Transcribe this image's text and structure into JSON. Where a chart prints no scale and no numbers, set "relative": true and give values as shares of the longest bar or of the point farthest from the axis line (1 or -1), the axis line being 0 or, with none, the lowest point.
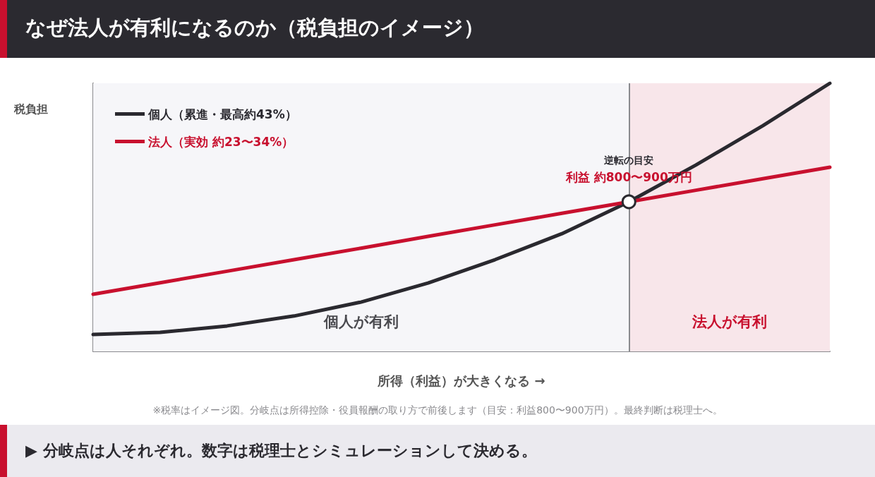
{
  "chart_data": {
    "type": "line",
    "title": "なぜ法人が有利になるのか（税負担のイメージ）",
    "xlabel": "所得（利益）が大きくなる →",
    "ylabel": "税負担",
    "relative": true,
    "categories": [
      null,
      null,
      null,
      null,
      null,
      null,
      null,
      null,
      null,
      null,
      null,
      null
    ],
    "series": [
      {
        "name": "個人（累進・最高約43%）",
        "color": "#2a292f",
        "values": [
          0.063,
          0.071,
          0.095,
          0.132,
          0.184,
          0.255,
          0.342,
          0.439,
          0.558,
          0.695,
          0.842,
          1.0
        ]
      },
      {
        "name": "法人（実効 約23〜34%）",
        "color": "#c8102e",
        "values": [
          0.213,
          0.256,
          0.299,
          0.342,
          0.385,
          0.429,
          0.472,
          0.515,
          0.558,
          0.601,
          0.644,
          0.687
        ]
      }
    ],
    "annotations": [
      "逆転の目安",
      "利益 約800〜900万円",
      "個人が有利",
      "法人が有利",
      "※税率はイメージ図。分岐点は所得控除・役員報酬の取り方で前後します（目安：利益800〜900万円）。最終判断は税理士へ。",
      "▶ 分岐点は人それぞれ。数字は税理士とシミュレーションして決める。"
    ],
    "legend": "top left",
    "grid": false,
    "marker": "none",
    "line_style": "solid"
  }
}
